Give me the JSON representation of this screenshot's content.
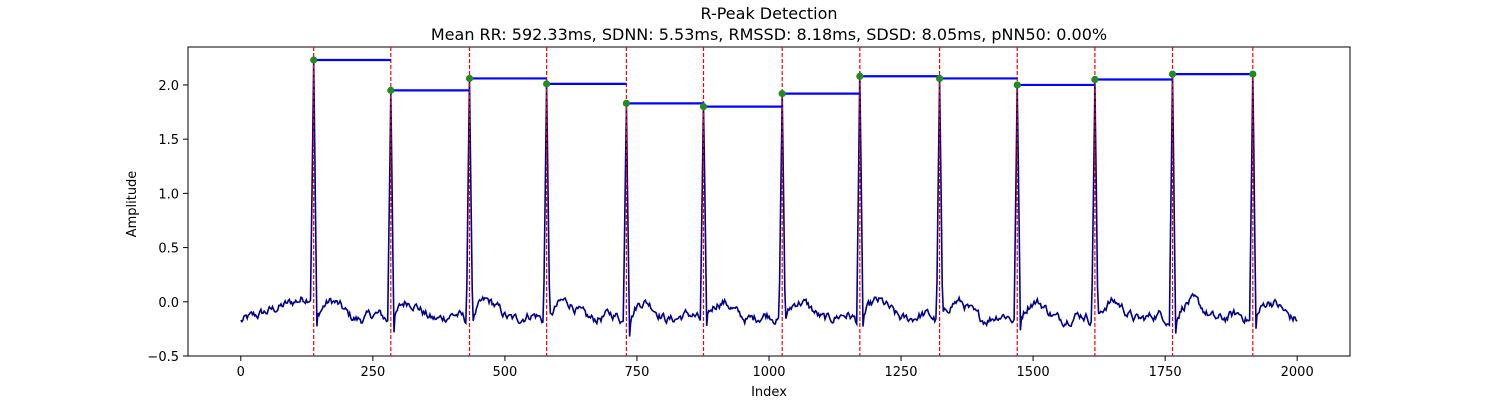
{
  "chart_data": {
    "type": "line",
    "title": "R-Peak Detection",
    "subtitle": "Mean RR: 592.33ms, SDNN: 5.53ms, RMSSD: 8.18ms, SDSD: 8.05ms, pNN50: 0.00%",
    "xlabel": "Index",
    "ylabel": "Amplitude",
    "xlim": [
      -100,
      2100
    ],
    "ylim": [
      -0.5,
      2.35
    ],
    "x_ticks": [
      0,
      250,
      500,
      750,
      1000,
      1250,
      1500,
      1750,
      2000
    ],
    "x_tick_labels": [
      "0",
      "250",
      "500",
      "750",
      "1000",
      "1250",
      "1500",
      "1750",
      "2000"
    ],
    "y_ticks": [
      -0.5,
      0.0,
      0.5,
      1.0,
      1.5,
      2.0
    ],
    "y_tick_labels": [
      "−0.5",
      "0.0",
      "0.5",
      "1.0",
      "1.5",
      "2.0"
    ],
    "grid": false,
    "signal_x_range": [
      0,
      2000
    ],
    "peaks": [
      {
        "x": 138,
        "y": 2.23
      },
      {
        "x": 284,
        "y": 1.95
      },
      {
        "x": 433,
        "y": 2.06
      },
      {
        "x": 579,
        "y": 2.01
      },
      {
        "x": 730,
        "y": 1.83
      },
      {
        "x": 876,
        "y": 1.8
      },
      {
        "x": 1025,
        "y": 1.92
      },
      {
        "x": 1172,
        "y": 2.08
      },
      {
        "x": 1323,
        "y": 2.06
      },
      {
        "x": 1470,
        "y": 2.0
      },
      {
        "x": 1617,
        "y": 2.05
      },
      {
        "x": 1764,
        "y": 2.1
      },
      {
        "x": 1916,
        "y": 2.1
      }
    ],
    "colors": {
      "signal": "#00008b",
      "peak_line": "#ff0000",
      "rr_interval": "#0000ff",
      "peak_marker": "#228b22"
    }
  }
}
